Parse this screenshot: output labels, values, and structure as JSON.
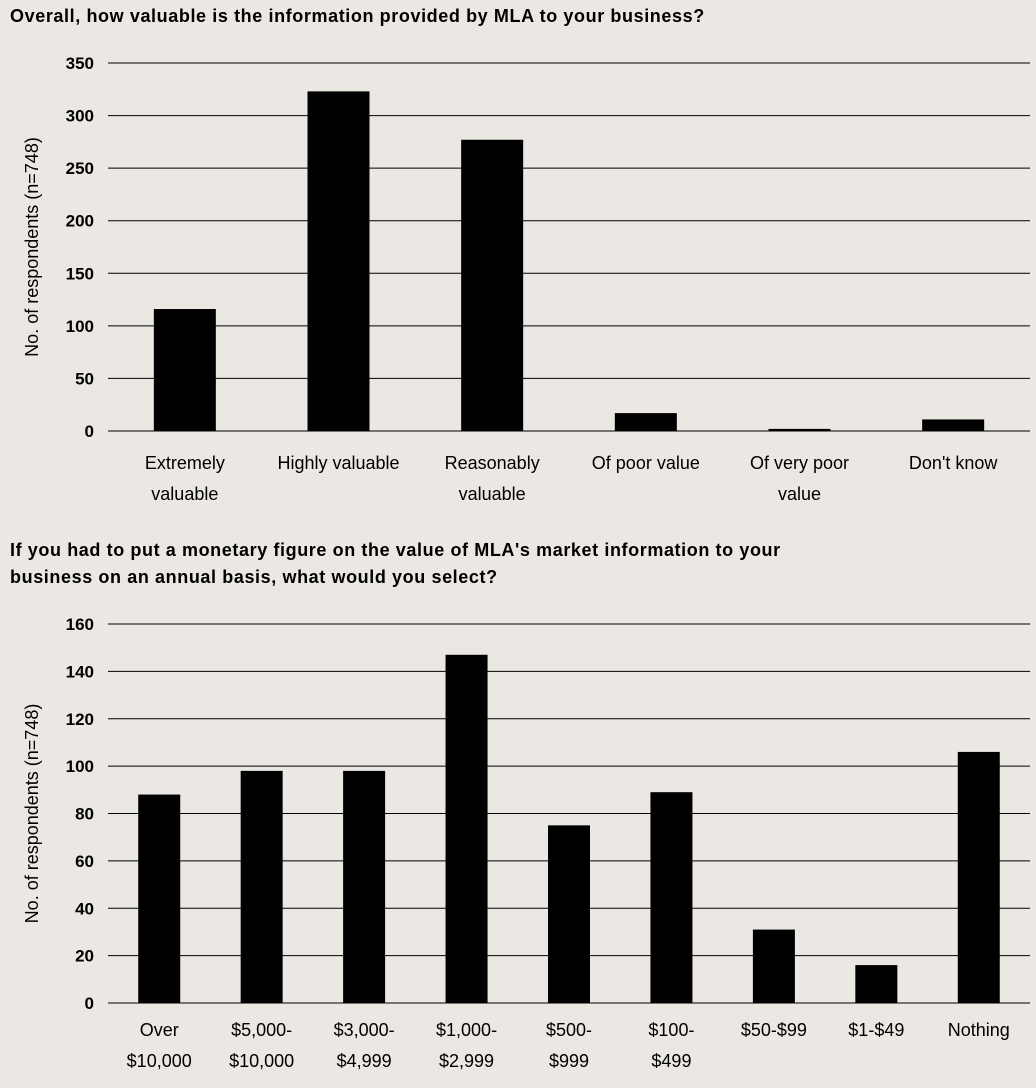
{
  "chart_data": [
    {
      "type": "bar",
      "title": "Overall, how valuable is the information provided by MLA to your business?",
      "ylabel": "No. of respondents (n=748)",
      "xlabel": "",
      "ylim": [
        0,
        350
      ],
      "yticks": [
        0,
        50,
        100,
        150,
        200,
        250,
        300,
        350
      ],
      "categories": [
        [
          "Extremely",
          "valuable"
        ],
        [
          "Highly valuable"
        ],
        [
          "Reasonably",
          "valuable"
        ],
        [
          "Of poor value"
        ],
        [
          "Of very poor",
          "value"
        ],
        [
          "Don't know"
        ]
      ],
      "values": [
        116,
        323,
        277,
        17,
        2,
        11
      ],
      "grid": "horizontal",
      "bar_color": "#000000"
    },
    {
      "type": "bar",
      "title_lines": [
        "If you had to put a monetary figure on the value of MLA's market information to your",
        "business on an annual basis, what would you select?"
      ],
      "ylabel": "No. of respondents (n=748)",
      "xlabel": "",
      "ylim": [
        0,
        160
      ],
      "yticks": [
        0,
        20,
        40,
        60,
        80,
        100,
        120,
        140,
        160
      ],
      "categories": [
        [
          "Over",
          "$10,000"
        ],
        [
          "$5,000-",
          "$10,000"
        ],
        [
          "$3,000-",
          "$4,999"
        ],
        [
          "$1,000-",
          "$2,999"
        ],
        [
          "$500-",
          "$999"
        ],
        [
          "$100-",
          "$499"
        ],
        [
          "$50-$99"
        ],
        [
          "$1-$49"
        ],
        [
          "Nothing"
        ]
      ],
      "values": [
        88,
        98,
        98,
        147,
        75,
        89,
        31,
        16,
        106
      ],
      "grid": "horizontal",
      "bar_color": "#000000"
    }
  ]
}
